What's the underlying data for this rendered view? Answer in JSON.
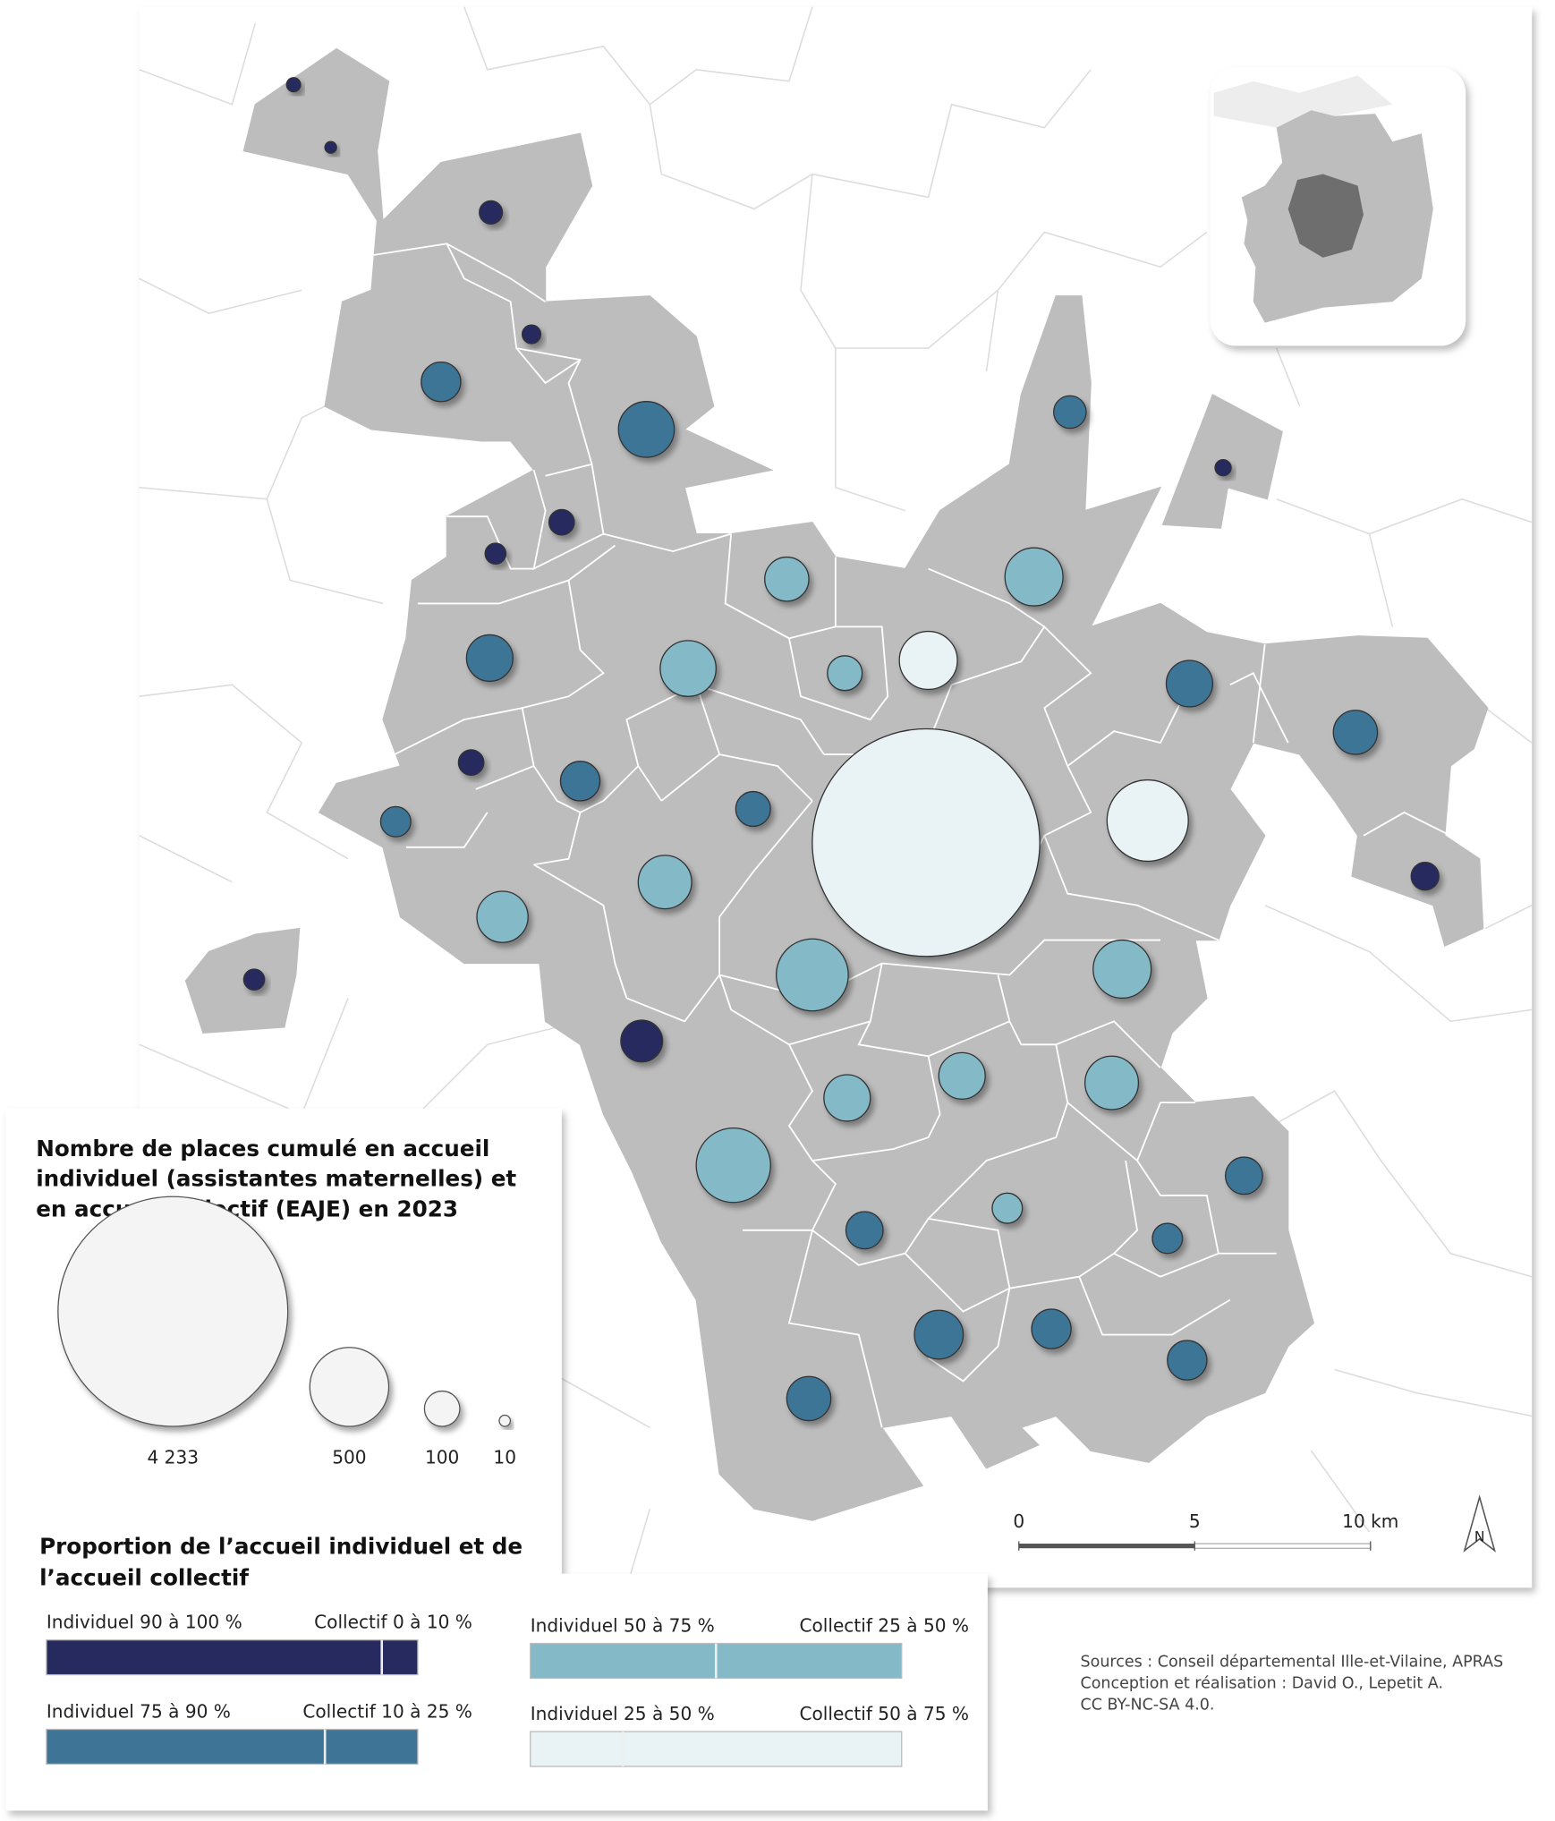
{
  "legend_size": {
    "title": [
      "Nombre de places cumulé en accueil",
      "individuel (assistantes maternelles) et",
      "en accueil collectif (EAJE) en 2023"
    ],
    "items": [
      {
        "value": 4233,
        "label": "4 233"
      },
      500,
      100,
      10
    ]
  },
  "legend_class": {
    "title": [
      "Proportion de l’accueil individuel et de",
      "l’accueil collectif"
    ],
    "classes": [
      {
        "individuel": "Individuel 90 à 100 %",
        "collectif": "Collectif 0 à 10 %",
        "color": "#262a5e"
      },
      {
        "individuel": "Individuel 75 à 90 %",
        "collectif": "Collectif 10 à 25 %",
        "color": "#3e7597"
      },
      {
        "individuel": "Individuel 50 à 75 %",
        "collectif": "Collectif 25 à 50 %",
        "color": "#84b9c8"
      },
      {
        "individuel": "Individuel 25 à 50 %",
        "collectif": "Collectif 50 à 75 %",
        "color": "#e9f3f6"
      }
    ]
  },
  "scale_bar": {
    "ticks": [
      0,
      5,
      {
        "value": 10,
        "label": "10 km"
      }
    ]
  },
  "north": "N",
  "sources": [
    "Sources : Conseil départemental Ille-et-Vilaine, APRAS",
    "Conception et réalisation : David O., Lepetit A.",
    "CC BY-NC-SA 4.0."
  ],
  "communes": [
    {
      "places": 16,
      "class": 0
    },
    {
      "places": 11,
      "class": 0
    },
    {
      "places": 43,
      "class": 0
    },
    {
      "places": 28,
      "class": 0
    },
    {
      "places": 125,
      "class": 1
    },
    {
      "places": 250,
      "class": 1
    },
    {
      "places": 85,
      "class": 1
    },
    {
      "places": 21,
      "class": 0
    },
    {
      "places": 52,
      "class": 0
    },
    {
      "places": 35,
      "class": 0
    },
    {
      "places": 156,
      "class": 2
    },
    {
      "places": 270,
      "class": 2
    },
    {
      "places": 173,
      "class": 1
    },
    {
      "places": 250,
      "class": 2
    },
    {
      "places": 97,
      "class": 2
    },
    {
      "places": 270,
      "class": 3
    },
    {
      "places": 173,
      "class": 1
    },
    {
      "places": 156,
      "class": 1
    },
    {
      "places": 52,
      "class": 0
    },
    {
      "places": 125,
      "class": 1
    },
    {
      "places": 97,
      "class": 1
    },
    {
      "places": 73,
      "class": 1
    },
    {
      "places": 4150,
      "class": 3
    },
    {
      "places": 530,
      "class": 3
    },
    {
      "places": 229,
      "class": 2
    },
    {
      "places": 210,
      "class": 2
    },
    {
      "places": 62,
      "class": 0
    },
    {
      "places": 270,
      "class": 2
    },
    {
      "places": 416,
      "class": 2
    },
    {
      "places": 35,
      "class": 0
    },
    {
      "places": 140,
      "class": 0
    },
    {
      "places": 173,
      "class": 2
    },
    {
      "places": 229,
      "class": 2
    },
    {
      "places": 173,
      "class": 2
    },
    {
      "places": 443,
      "class": 2
    },
    {
      "places": 111,
      "class": 1
    },
    {
      "places": 73,
      "class": 2
    },
    {
      "places": 111,
      "class": 1
    },
    {
      "places": 73,
      "class": 1
    },
    {
      "places": 191,
      "class": 1
    },
    {
      "places": 125,
      "class": 1
    },
    {
      "places": 125,
      "class": 1
    },
    {
      "places": 156,
      "class": 1
    }
  ]
}
